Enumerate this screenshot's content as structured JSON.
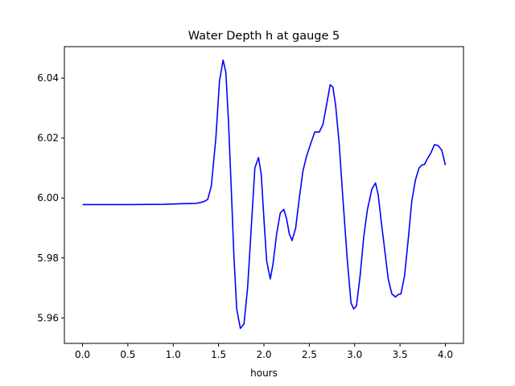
{
  "chart_data": {
    "type": "line",
    "title": "Water Depth h at gauge 5",
    "xlabel": "hours",
    "ylabel": "",
    "xlim": [
      -0.2,
      4.2
    ],
    "ylim": [
      5.9515,
      6.0505
    ],
    "xticks": [
      0.0,
      0.5,
      1.0,
      1.5,
      2.0,
      2.5,
      3.0,
      3.5,
      4.0
    ],
    "xtick_labels": [
      "0.0",
      "0.5",
      "1.0",
      "1.5",
      "2.0",
      "2.5",
      "3.0",
      "3.5",
      "4.0"
    ],
    "yticks": [
      5.96,
      5.98,
      6.0,
      6.02,
      6.04
    ],
    "ytick_labels": [
      "5.96",
      "5.98",
      "6.00",
      "6.02",
      "6.04"
    ],
    "grid": false,
    "legend": "none",
    "series": [
      {
        "color": "#0000ff",
        "x": [
          0.0,
          0.5,
          0.9,
          1.1,
          1.25,
          1.33,
          1.38,
          1.42,
          1.47,
          1.51,
          1.55,
          1.58,
          1.61,
          1.64,
          1.67,
          1.7,
          1.74,
          1.78,
          1.82,
          1.86,
          1.9,
          1.94,
          1.97,
          2.0,
          2.03,
          2.07,
          2.1,
          2.14,
          2.18,
          2.22,
          2.25,
          2.28,
          2.31,
          2.35,
          2.39,
          2.43,
          2.47,
          2.52,
          2.56,
          2.61,
          2.65,
          2.69,
          2.73,
          2.76,
          2.79,
          2.83,
          2.87,
          2.92,
          2.96,
          2.99,
          3.02,
          3.06,
          3.1,
          3.14,
          3.19,
          3.23,
          3.26,
          3.29,
          3.33,
          3.37,
          3.41,
          3.45,
          3.48,
          3.51,
          3.55,
          3.59,
          3.63,
          3.67,
          3.71,
          3.74,
          3.77,
          3.8,
          3.84,
          3.88,
          3.92,
          3.96,
          4.0
        ],
        "y": [
          5.9978,
          5.9978,
          5.9979,
          5.9981,
          5.9982,
          5.9987,
          5.9995,
          6.004,
          6.02,
          6.039,
          6.046,
          6.042,
          6.025,
          6.003,
          5.98,
          5.963,
          5.9565,
          5.958,
          5.97,
          5.99,
          6.01,
          6.0135,
          6.008,
          5.993,
          5.979,
          5.973,
          5.978,
          5.988,
          5.995,
          5.9962,
          5.993,
          5.988,
          5.9858,
          5.99,
          6.0,
          6.009,
          6.014,
          6.0185,
          6.022,
          6.022,
          6.0245,
          6.031,
          6.0378,
          6.037,
          6.031,
          6.018,
          6.0,
          5.979,
          5.965,
          5.963,
          5.964,
          5.974,
          5.987,
          5.996,
          6.003,
          6.005,
          6.001,
          5.993,
          5.983,
          5.973,
          5.968,
          5.967,
          5.9678,
          5.968,
          5.974,
          5.986,
          5.999,
          6.006,
          6.01,
          6.011,
          6.0112,
          6.013,
          6.015,
          6.0178,
          6.0175,
          6.016,
          6.011
        ]
      }
    ]
  }
}
